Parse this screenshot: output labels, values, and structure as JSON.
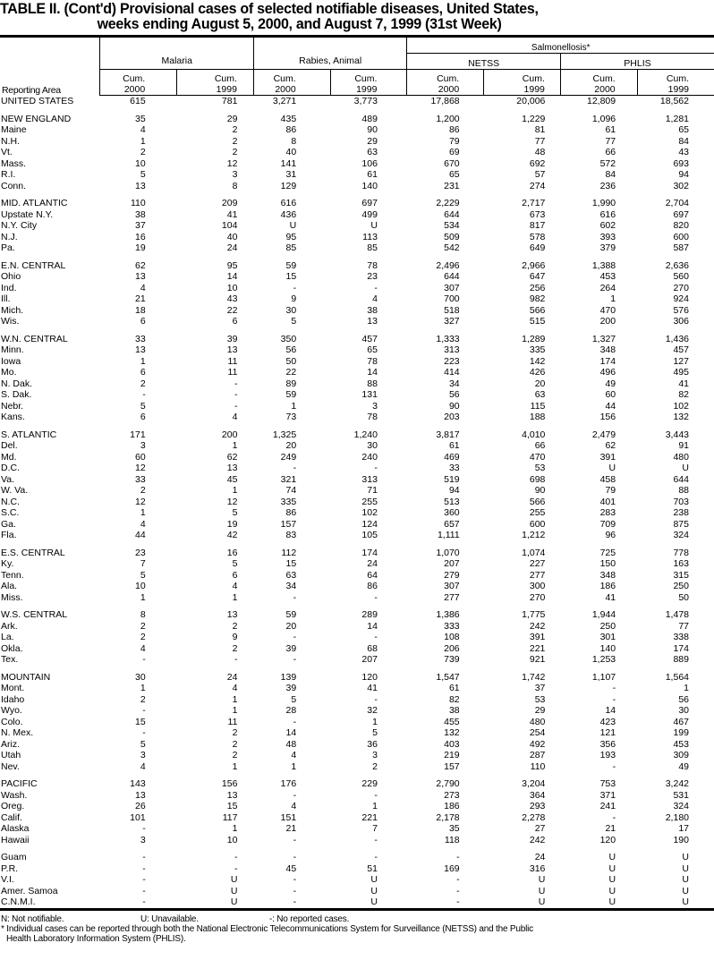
{
  "title": {
    "line1": "TABLE II. (Cont'd) Provisional cases of selected notifiable diseases, United States,",
    "line2": "weeks ending August 5, 2000, and August 7, 1999 (31st Week)"
  },
  "header": {
    "reporting_area": "Reporting Area",
    "malaria": "Malaria",
    "rabies": "Rabies, Animal",
    "salmonellosis": "Salmonellosis*",
    "netss": "NETSS",
    "phlis": "PHLIS",
    "cum": "Cum.",
    "years": [
      "2000",
      "1999",
      "2000",
      "1999",
      "2000",
      "1999",
      "2000",
      "1999"
    ]
  },
  "groups": [
    {
      "rows": [
        [
          "UNITED STATES",
          "615",
          "781",
          "3,271",
          "3,773",
          "17,868",
          "20,006",
          "12,809",
          "18,562"
        ]
      ]
    },
    {
      "rows": [
        [
          "NEW ENGLAND",
          "35",
          "29",
          "435",
          "489",
          "1,200",
          "1,229",
          "1,096",
          "1,281"
        ],
        [
          "Maine",
          "4",
          "2",
          "86",
          "90",
          "86",
          "81",
          "61",
          "65"
        ],
        [
          "N.H.",
          "1",
          "2",
          "8",
          "29",
          "79",
          "77",
          "77",
          "84"
        ],
        [
          "Vt.",
          "2",
          "2",
          "40",
          "63",
          "69",
          "48",
          "66",
          "43"
        ],
        [
          "Mass.",
          "10",
          "12",
          "141",
          "106",
          "670",
          "692",
          "572",
          "693"
        ],
        [
          "R.I.",
          "5",
          "3",
          "31",
          "61",
          "65",
          "57",
          "84",
          "94"
        ],
        [
          "Conn.",
          "13",
          "8",
          "129",
          "140",
          "231",
          "274",
          "236",
          "302"
        ]
      ]
    },
    {
      "rows": [
        [
          "MID. ATLANTIC",
          "110",
          "209",
          "616",
          "697",
          "2,229",
          "2,717",
          "1,990",
          "2,704"
        ],
        [
          "Upstate N.Y.",
          "38",
          "41",
          "436",
          "499",
          "644",
          "673",
          "616",
          "697"
        ],
        [
          "N.Y. City",
          "37",
          "104",
          "U",
          "U",
          "534",
          "817",
          "602",
          "820"
        ],
        [
          "N.J.",
          "16",
          "40",
          "95",
          "113",
          "509",
          "578",
          "393",
          "600"
        ],
        [
          "Pa.",
          "19",
          "24",
          "85",
          "85",
          "542",
          "649",
          "379",
          "587"
        ]
      ]
    },
    {
      "rows": [
        [
          "E.N. CENTRAL",
          "62",
          "95",
          "59",
          "78",
          "2,496",
          "2,966",
          "1,388",
          "2,636"
        ],
        [
          "Ohio",
          "13",
          "14",
          "15",
          "23",
          "644",
          "647",
          "453",
          "560"
        ],
        [
          "Ind.",
          "4",
          "10",
          "-",
          "-",
          "307",
          "256",
          "264",
          "270"
        ],
        [
          "Ill.",
          "21",
          "43",
          "9",
          "4",
          "700",
          "982",
          "1",
          "924"
        ],
        [
          "Mich.",
          "18",
          "22",
          "30",
          "38",
          "518",
          "566",
          "470",
          "576"
        ],
        [
          "Wis.",
          "6",
          "6",
          "5",
          "13",
          "327",
          "515",
          "200",
          "306"
        ]
      ]
    },
    {
      "rows": [
        [
          "W.N. CENTRAL",
          "33",
          "39",
          "350",
          "457",
          "1,333",
          "1,289",
          "1,327",
          "1,436"
        ],
        [
          "Minn.",
          "13",
          "13",
          "56",
          "65",
          "313",
          "335",
          "348",
          "457"
        ],
        [
          "Iowa",
          "1",
          "11",
          "50",
          "78",
          "223",
          "142",
          "174",
          "127"
        ],
        [
          "Mo.",
          "6",
          "11",
          "22",
          "14",
          "414",
          "426",
          "496",
          "495"
        ],
        [
          "N. Dak.",
          "2",
          "-",
          "89",
          "88",
          "34",
          "20",
          "49",
          "41"
        ],
        [
          "S. Dak.",
          "-",
          "-",
          "59",
          "131",
          "56",
          "63",
          "60",
          "82"
        ],
        [
          "Nebr.",
          "5",
          "-",
          "1",
          "3",
          "90",
          "115",
          "44",
          "102"
        ],
        [
          "Kans.",
          "6",
          "4",
          "73",
          "78",
          "203",
          "188",
          "156",
          "132"
        ]
      ]
    },
    {
      "rows": [
        [
          "S. ATLANTIC",
          "171",
          "200",
          "1,325",
          "1,240",
          "3,817",
          "4,010",
          "2,479",
          "3,443"
        ],
        [
          "Del.",
          "3",
          "1",
          "20",
          "30",
          "61",
          "66",
          "62",
          "91"
        ],
        [
          "Md.",
          "60",
          "62",
          "249",
          "240",
          "469",
          "470",
          "391",
          "480"
        ],
        [
          "D.C.",
          "12",
          "13",
          "-",
          "-",
          "33",
          "53",
          "U",
          "U"
        ],
        [
          "Va.",
          "33",
          "45",
          "321",
          "313",
          "519",
          "698",
          "458",
          "644"
        ],
        [
          "W. Va.",
          "2",
          "1",
          "74",
          "71",
          "94",
          "90",
          "79",
          "88"
        ],
        [
          "N.C.",
          "12",
          "12",
          "335",
          "255",
          "513",
          "566",
          "401",
          "703"
        ],
        [
          "S.C.",
          "1",
          "5",
          "86",
          "102",
          "360",
          "255",
          "283",
          "238"
        ],
        [
          "Ga.",
          "4",
          "19",
          "157",
          "124",
          "657",
          "600",
          "709",
          "875"
        ],
        [
          "Fla.",
          "44",
          "42",
          "83",
          "105",
          "1,111",
          "1,212",
          "96",
          "324"
        ]
      ]
    },
    {
      "rows": [
        [
          "E.S. CENTRAL",
          "23",
          "16",
          "112",
          "174",
          "1,070",
          "1,074",
          "725",
          "778"
        ],
        [
          "Ky.",
          "7",
          "5",
          "15",
          "24",
          "207",
          "227",
          "150",
          "163"
        ],
        [
          "Tenn.",
          "5",
          "6",
          "63",
          "64",
          "279",
          "277",
          "348",
          "315"
        ],
        [
          "Ala.",
          "10",
          "4",
          "34",
          "86",
          "307",
          "300",
          "186",
          "250"
        ],
        [
          "Miss.",
          "1",
          "1",
          "-",
          "-",
          "277",
          "270",
          "41",
          "50"
        ]
      ]
    },
    {
      "rows": [
        [
          "W.S. CENTRAL",
          "8",
          "13",
          "59",
          "289",
          "1,386",
          "1,775",
          "1,944",
          "1,478"
        ],
        [
          "Ark.",
          "2",
          "2",
          "20",
          "14",
          "333",
          "242",
          "250",
          "77"
        ],
        [
          "La.",
          "2",
          "9",
          "-",
          "-",
          "108",
          "391",
          "301",
          "338"
        ],
        [
          "Okla.",
          "4",
          "2",
          "39",
          "68",
          "206",
          "221",
          "140",
          "174"
        ],
        [
          "Tex.",
          "-",
          "-",
          "-",
          "207",
          "739",
          "921",
          "1,253",
          "889"
        ]
      ]
    },
    {
      "rows": [
        [
          "MOUNTAIN",
          "30",
          "24",
          "139",
          "120",
          "1,547",
          "1,742",
          "1,107",
          "1,564"
        ],
        [
          "Mont.",
          "1",
          "4",
          "39",
          "41",
          "61",
          "37",
          "-",
          "1"
        ],
        [
          "Idaho",
          "2",
          "1",
          "5",
          "-",
          "82",
          "53",
          "-",
          "56"
        ],
        [
          "Wyo.",
          "-",
          "1",
          "28",
          "32",
          "38",
          "29",
          "14",
          "30"
        ],
        [
          "Colo.",
          "15",
          "11",
          "-",
          "1",
          "455",
          "480",
          "423",
          "467"
        ],
        [
          "N. Mex.",
          "-",
          "2",
          "14",
          "5",
          "132",
          "254",
          "121",
          "199"
        ],
        [
          "Ariz.",
          "5",
          "2",
          "48",
          "36",
          "403",
          "492",
          "356",
          "453"
        ],
        [
          "Utah",
          "3",
          "2",
          "4",
          "3",
          "219",
          "287",
          "193",
          "309"
        ],
        [
          "Nev.",
          "4",
          "1",
          "1",
          "2",
          "157",
          "110",
          "-",
          "49"
        ]
      ]
    },
    {
      "rows": [
        [
          "PACIFIC",
          "143",
          "156",
          "176",
          "229",
          "2,790",
          "3,204",
          "753",
          "3,242"
        ],
        [
          "Wash.",
          "13",
          "13",
          "-",
          "-",
          "273",
          "364",
          "371",
          "531"
        ],
        [
          "Oreg.",
          "26",
          "15",
          "4",
          "1",
          "186",
          "293",
          "241",
          "324"
        ],
        [
          "Calif.",
          "101",
          "117",
          "151",
          "221",
          "2,178",
          "2,278",
          "-",
          "2,180"
        ],
        [
          "Alaska",
          "-",
          "1",
          "21",
          "7",
          "35",
          "27",
          "21",
          "17"
        ],
        [
          "Hawaii",
          "3",
          "10",
          "-",
          "-",
          "118",
          "242",
          "120",
          "190"
        ]
      ]
    },
    {
      "rows": [
        [
          "Guam",
          "-",
          "-",
          "-",
          "-",
          "-",
          "24",
          "U",
          "U"
        ],
        [
          "P.R.",
          "-",
          "-",
          "45",
          "51",
          "169",
          "316",
          "U",
          "U"
        ],
        [
          "V.I.",
          "-",
          "U",
          "-",
          "U",
          "-",
          "U",
          "U",
          "U"
        ],
        [
          "Amer. Samoa",
          "-",
          "U",
          "-",
          "U",
          "-",
          "U",
          "U",
          "U"
        ],
        [
          "C.N.M.I.",
          "-",
          "U",
          "-",
          "U",
          "-",
          "U",
          "U",
          "U"
        ]
      ]
    }
  ],
  "footnotes": {
    "n": "N: Not notifiable.",
    "u": "U: Unavailable.",
    "dash": "-: No reported cases.",
    "star_line1": "* Individual cases can be reported through both the National Electronic Telecommunications System for Surveillance (NETSS) and the Public",
    "star_line2": "Health Laboratory Information System (PHLIS)."
  }
}
